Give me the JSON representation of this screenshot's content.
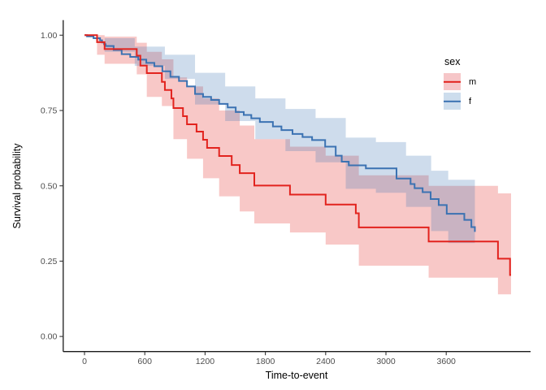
{
  "figure": {
    "background": "#ffffff"
  },
  "legend": {
    "title": "sex",
    "items": [
      {
        "label": "m",
        "line_color": "#E2231E",
        "band_color": "#F6C6C8"
      },
      {
        "label": "f",
        "line_color": "#3B72B2",
        "band_color": "#CDDDED"
      }
    ]
  },
  "chart_data": {
    "type": "line",
    "subtype": "kaplan-meier-step-with-confidence-bands",
    "title": "",
    "xlabel": "Time-to-event",
    "ylabel": "Survival probability",
    "xlim": [
      0,
      4235
    ],
    "ylim": [
      0,
      1
    ],
    "grid": false,
    "legend_position": "right",
    "x_ticks": [
      {
        "v": 0,
        "label": "0"
      },
      {
        "v": 600,
        "label": "600"
      },
      {
        "v": 1200,
        "label": "1200"
      },
      {
        "v": 1800,
        "label": "1800"
      },
      {
        "v": 2400,
        "label": "2400"
      },
      {
        "v": 3000,
        "label": "3000"
      },
      {
        "v": 3600,
        "label": "3600"
      }
    ],
    "y_ticks": [
      {
        "v": 1.0,
        "label": "1.00"
      },
      {
        "v": 0.75,
        "label": "0.75"
      },
      {
        "v": 0.5,
        "label": "0.50"
      },
      {
        "v": 0.25,
        "label": "0.25"
      },
      {
        "v": 0.0,
        "label": "0.00"
      }
    ],
    "series": [
      {
        "name": "m",
        "color": "#E2231E",
        "band_opacity": 0.25,
        "steps": [
          [
            0,
            1.0
          ],
          [
            125,
            0.977
          ],
          [
            200,
            0.954
          ],
          [
            520,
            0.932
          ],
          [
            556,
            0.899
          ],
          [
            620,
            0.874
          ],
          [
            770,
            0.845
          ],
          [
            800,
            0.818
          ],
          [
            865,
            0.79
          ],
          [
            885,
            0.758
          ],
          [
            980,
            0.731
          ],
          [
            1020,
            0.704
          ],
          [
            1115,
            0.68
          ],
          [
            1180,
            0.653
          ],
          [
            1220,
            0.626
          ],
          [
            1340,
            0.599
          ],
          [
            1465,
            0.569
          ],
          [
            1545,
            0.542
          ],
          [
            1690,
            0.501
          ],
          [
            2045,
            0.471
          ],
          [
            2400,
            0.438
          ],
          [
            2700,
            0.409
          ],
          [
            2730,
            0.362
          ],
          [
            3425,
            0.315
          ],
          [
            4115,
            0.258
          ],
          [
            4235,
            0.204
          ],
          [
            4245,
            0.204
          ]
        ],
        "band_upper": [
          [
            0,
            1.0
          ],
          [
            125,
            1.0
          ],
          [
            200,
            0.995
          ],
          [
            520,
            0.975
          ],
          [
            620,
            0.945
          ],
          [
            770,
            0.92
          ],
          [
            885,
            0.86
          ],
          [
            1020,
            0.83
          ],
          [
            1180,
            0.79
          ],
          [
            1340,
            0.75
          ],
          [
            1545,
            0.7
          ],
          [
            1690,
            0.655
          ],
          [
            2045,
            0.63
          ],
          [
            2400,
            0.6
          ],
          [
            2730,
            0.535
          ],
          [
            3425,
            0.5
          ],
          [
            4115,
            0.475
          ],
          [
            4245,
            0.47
          ]
        ],
        "band_lower": [
          [
            0,
            1.0
          ],
          [
            125,
            0.935
          ],
          [
            200,
            0.905
          ],
          [
            520,
            0.87
          ],
          [
            620,
            0.795
          ],
          [
            770,
            0.765
          ],
          [
            885,
            0.655
          ],
          [
            1020,
            0.59
          ],
          [
            1180,
            0.525
          ],
          [
            1340,
            0.465
          ],
          [
            1545,
            0.415
          ],
          [
            1690,
            0.375
          ],
          [
            2045,
            0.345
          ],
          [
            2400,
            0.305
          ],
          [
            2730,
            0.235
          ],
          [
            3425,
            0.195
          ],
          [
            4115,
            0.14
          ],
          [
            4245,
            0.085
          ]
        ]
      },
      {
        "name": "f",
        "color": "#3B72B2",
        "band_opacity": 0.25,
        "steps": [
          [
            0,
            1.0
          ],
          [
            25,
            0.996
          ],
          [
            90,
            0.99
          ],
          [
            155,
            0.983
          ],
          [
            175,
            0.976
          ],
          [
            195,
            0.97
          ],
          [
            210,
            0.964
          ],
          [
            290,
            0.951
          ],
          [
            370,
            0.937
          ],
          [
            455,
            0.928
          ],
          [
            535,
            0.919
          ],
          [
            615,
            0.908
          ],
          [
            695,
            0.897
          ],
          [
            775,
            0.88
          ],
          [
            855,
            0.862
          ],
          [
            940,
            0.848
          ],
          [
            1020,
            0.83
          ],
          [
            1100,
            0.805
          ],
          [
            1180,
            0.795
          ],
          [
            1260,
            0.785
          ],
          [
            1340,
            0.772
          ],
          [
            1425,
            0.76
          ],
          [
            1505,
            0.745
          ],
          [
            1585,
            0.735
          ],
          [
            1660,
            0.724
          ],
          [
            1745,
            0.712
          ],
          [
            1875,
            0.697
          ],
          [
            1960,
            0.685
          ],
          [
            2070,
            0.672
          ],
          [
            2170,
            0.662
          ],
          [
            2265,
            0.652
          ],
          [
            2395,
            0.63
          ],
          [
            2500,
            0.6
          ],
          [
            2560,
            0.58
          ],
          [
            2630,
            0.568
          ],
          [
            2800,
            0.558
          ],
          [
            3105,
            0.524
          ],
          [
            3245,
            0.506
          ],
          [
            3285,
            0.492
          ],
          [
            3365,
            0.479
          ],
          [
            3445,
            0.456
          ],
          [
            3525,
            0.436
          ],
          [
            3605,
            0.407
          ],
          [
            3780,
            0.387
          ],
          [
            3850,
            0.363
          ],
          [
            3885,
            0.347
          ]
        ],
        "band_upper": [
          [
            0,
            1.0
          ],
          [
            200,
            0.99
          ],
          [
            500,
            0.962
          ],
          [
            800,
            0.935
          ],
          [
            1100,
            0.875
          ],
          [
            1400,
            0.83
          ],
          [
            1700,
            0.79
          ],
          [
            2000,
            0.755
          ],
          [
            2300,
            0.725
          ],
          [
            2600,
            0.66
          ],
          [
            2900,
            0.645
          ],
          [
            3200,
            0.6
          ],
          [
            3450,
            0.55
          ],
          [
            3620,
            0.52
          ],
          [
            3885,
            0.5
          ]
        ],
        "band_lower": [
          [
            0,
            1.0
          ],
          [
            200,
            0.945
          ],
          [
            500,
            0.898
          ],
          [
            800,
            0.855
          ],
          [
            1100,
            0.77
          ],
          [
            1400,
            0.715
          ],
          [
            1700,
            0.655
          ],
          [
            2000,
            0.615
          ],
          [
            2300,
            0.578
          ],
          [
            2600,
            0.49
          ],
          [
            2900,
            0.477
          ],
          [
            3200,
            0.43
          ],
          [
            3450,
            0.35
          ],
          [
            3620,
            0.31
          ],
          [
            3885,
            0.27
          ]
        ]
      }
    ]
  }
}
